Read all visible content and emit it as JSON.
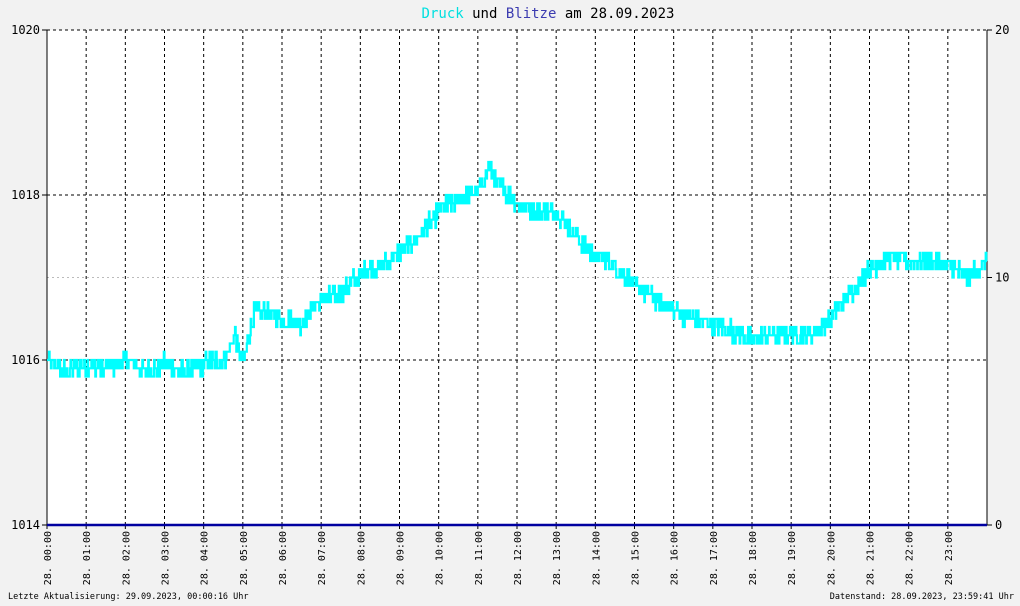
{
  "colors": {
    "background": "#f2f2f2",
    "druck": "#00ffff",
    "blitze": "#0000a0",
    "title_text": "#000000",
    "grid": "#000000"
  },
  "chart_data": {
    "type": "line",
    "title_parts": {
      "series1": "Druck",
      "conj": "und",
      "series2": "Blitze",
      "am": "am",
      "date": "28.09.2023"
    },
    "left_axis": {
      "ylim": [
        1014,
        1020
      ],
      "ticks": [
        "1014",
        "1016",
        "1018",
        "1020"
      ]
    },
    "right_axis": {
      "ylim": [
        0,
        20
      ],
      "ticks": [
        "0",
        "10",
        "20"
      ]
    },
    "xlim_hours": [
      0,
      24
    ],
    "x_tick_labels": [
      "28. 00:00",
      "28. 01:00",
      "28. 02:00",
      "28. 03:00",
      "28. 04:00",
      "28. 05:00",
      "28. 06:00",
      "28. 07:00",
      "28. 08:00",
      "28. 09:00",
      "28. 10:00",
      "28. 11:00",
      "28. 12:00",
      "28. 13:00",
      "28. 14:00",
      "28. 15:00",
      "28. 16:00",
      "28. 17:00",
      "28. 18:00",
      "28. 19:00",
      "28. 20:00",
      "28. 21:00",
      "28. 22:00",
      "28. 23:00"
    ],
    "grid": true,
    "series": [
      {
        "name": "Druck",
        "axis": "left",
        "x_hours": [
          0,
          0.5,
          1.0,
          1.5,
          2.0,
          2.5,
          3.0,
          3.5,
          4.0,
          4.5,
          4.8,
          5.0,
          5.3,
          5.7,
          6.0,
          6.5,
          7.0,
          7.5,
          8.0,
          8.5,
          9.0,
          9.5,
          10.0,
          10.5,
          11.0,
          11.3,
          11.5,
          12.0,
          12.5,
          13.0,
          13.5,
          14.0,
          14.5,
          15.0,
          15.5,
          16.0,
          16.5,
          17.0,
          17.5,
          18.0,
          18.5,
          19.0,
          19.5,
          20.0,
          20.5,
          21.0,
          21.5,
          22.0,
          22.5,
          23.0,
          23.5,
          24.0
        ],
        "values": [
          1016.0,
          1015.85,
          1015.95,
          1015.9,
          1016.0,
          1015.85,
          1015.95,
          1015.85,
          1015.95,
          1016.0,
          1016.3,
          1015.95,
          1016.6,
          1016.55,
          1016.5,
          1016.45,
          1016.75,
          1016.8,
          1017.05,
          1017.15,
          1017.3,
          1017.5,
          1017.8,
          1017.95,
          1018.05,
          1018.35,
          1018.15,
          1017.9,
          1017.8,
          1017.8,
          1017.5,
          1017.25,
          1017.15,
          1016.9,
          1016.75,
          1016.6,
          1016.5,
          1016.45,
          1016.35,
          1016.25,
          1016.3,
          1016.35,
          1016.3,
          1016.5,
          1016.8,
          1017.1,
          1017.25,
          1017.2,
          1017.2,
          1017.15,
          1017.0,
          1017.2
        ]
      },
      {
        "name": "Blitze",
        "axis": "right",
        "x_hours": [
          0,
          24
        ],
        "values": [
          0,
          0
        ]
      }
    ]
  },
  "footer": {
    "left": "Letzte Aktualisierung: 29.09.2023, 00:00:16 Uhr",
    "right": "Datenstand: 28.09.2023, 23:59:41 Uhr"
  }
}
